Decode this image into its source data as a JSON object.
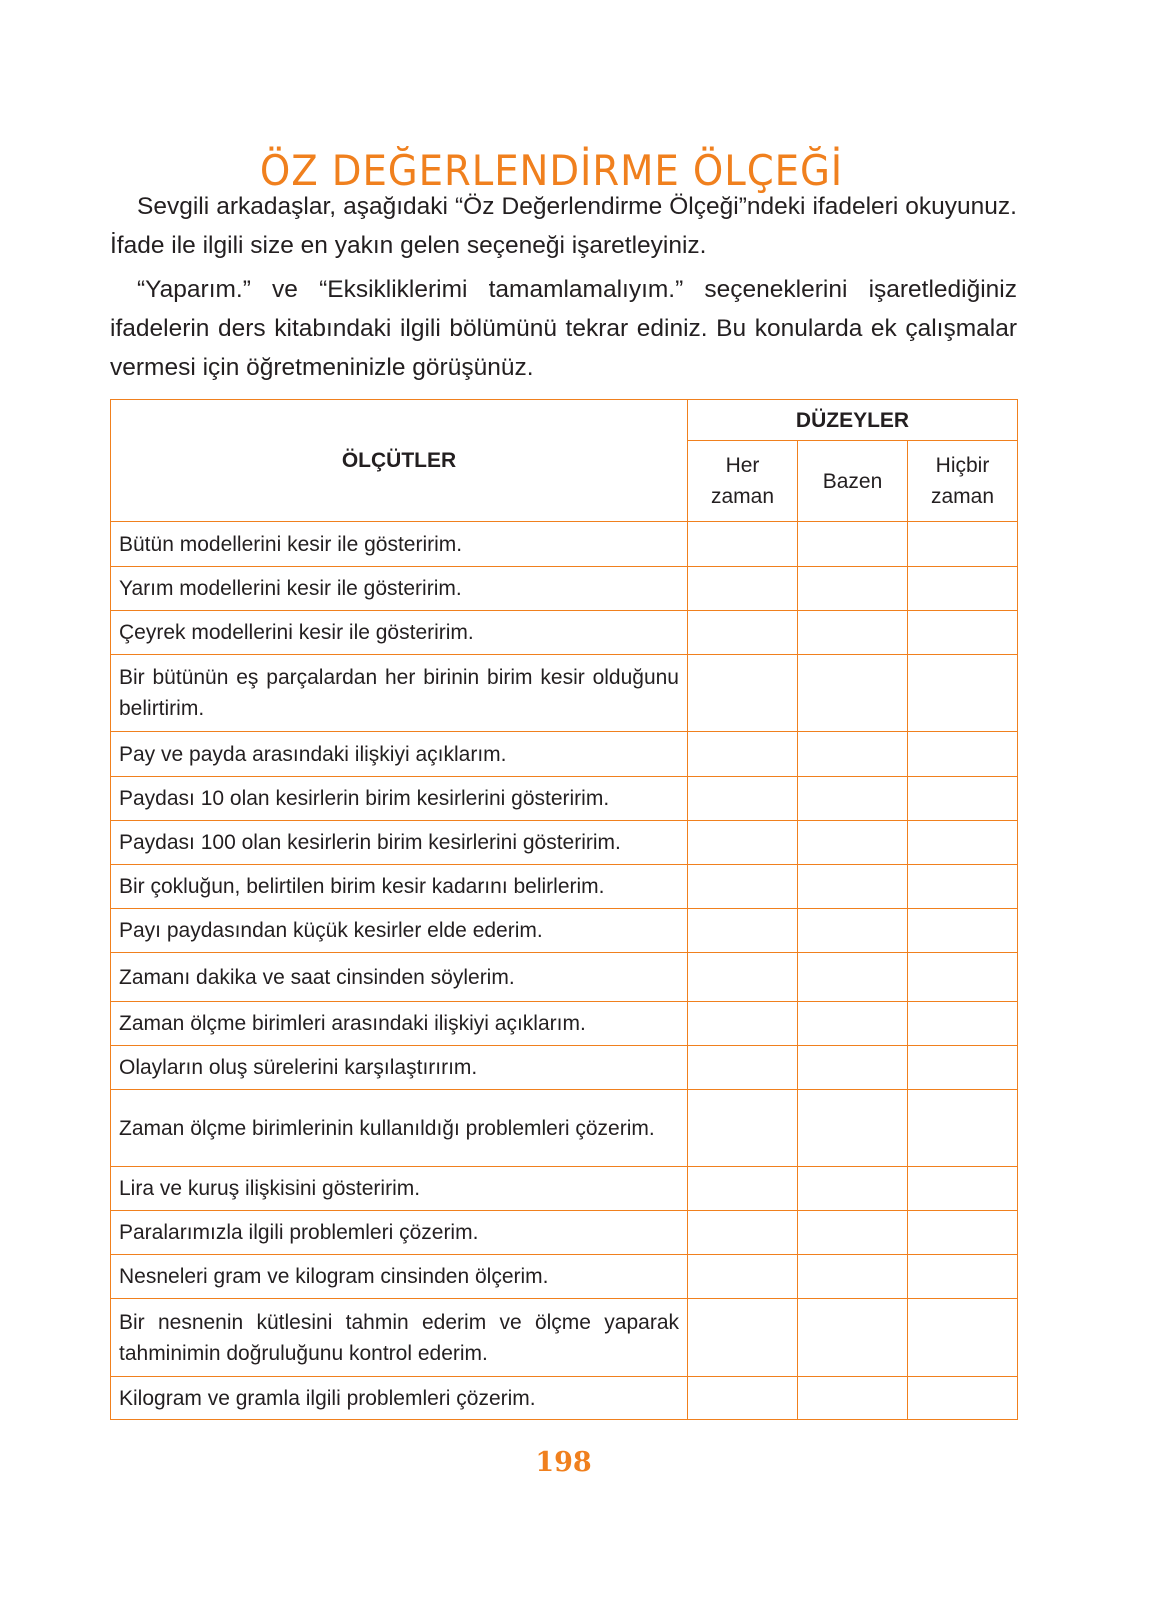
{
  "title": "ÖZ DEĞERLENDİRME ÖLÇEĞİ",
  "paragraphs": [
    "Sevgili arkadaşlar, aşağıdaki “Öz Değerlendirme Ölçeği”ndeki ifadeleri okuyunuz. İfade ile ilgili size en yakın gelen seçeneği işaretleyiniz.",
    "“Yaparım.” ve “Eksikliklerimi tamamlamalıyım.” seçeneklerini işaretlediğiniz ifadelerin ders kitabındaki ilgili bölümünü tekrar ediniz. Bu konularda ek çalışmalar vermesi için öğretmeninizle görüşünüz."
  ],
  "table": {
    "criteria_header": "ÖLÇÜTLER",
    "levels_header": "DÜZEYLER",
    "levels": [
      "Her zaman",
      "Bazen",
      "Hiçbir zaman"
    ],
    "rows": [
      "Bütün modellerini kesir ile gösteririm.",
      "Yarım modellerini kesir ile gösteririm.",
      "Çeyrek modellerini kesir ile gösteririm.",
      "Bir bütünün eş parçalardan her birinin birim kesir olduğunu belirtirim.",
      "Pay ve payda arasındaki ilişkiyi açıklarım.",
      "Paydası 10 olan kesirlerin birim kesirlerini gösteririm.",
      "Paydası 100 olan kesirlerin birim kesirlerini gösteririm.",
      "Bir çokluğun, belirtilen birim kesir kadarını belirlerim.",
      "Payı paydasından küçük kesirler elde ederim.",
      "Zamanı dakika ve saat cinsinden söylerim.",
      "Zaman ölçme birimleri arasındaki ilişkiyi açıklarım.",
      "Olayların oluş sürelerini karşılaştırırım.",
      "Zaman ölçme birimlerinin kullanıldığı problemleri çözerim.",
      "Lira ve kuruş ilişkisini gösteririm.",
      "Paralarımızla ilgili problemleri çözerim.",
      "Nesneleri gram ve kilogram cinsinden ölçerim.",
      "Bir nesnenin kütlesini tahmin ederim ve ölçme yaparak tahminimin doğruluğunu kontrol ederim.",
      "Kilogram ve gramla ilgili problemleri çözerim."
    ]
  },
  "page_number": "198",
  "colors": {
    "accent": "#f0801e",
    "text": "#231f20"
  }
}
